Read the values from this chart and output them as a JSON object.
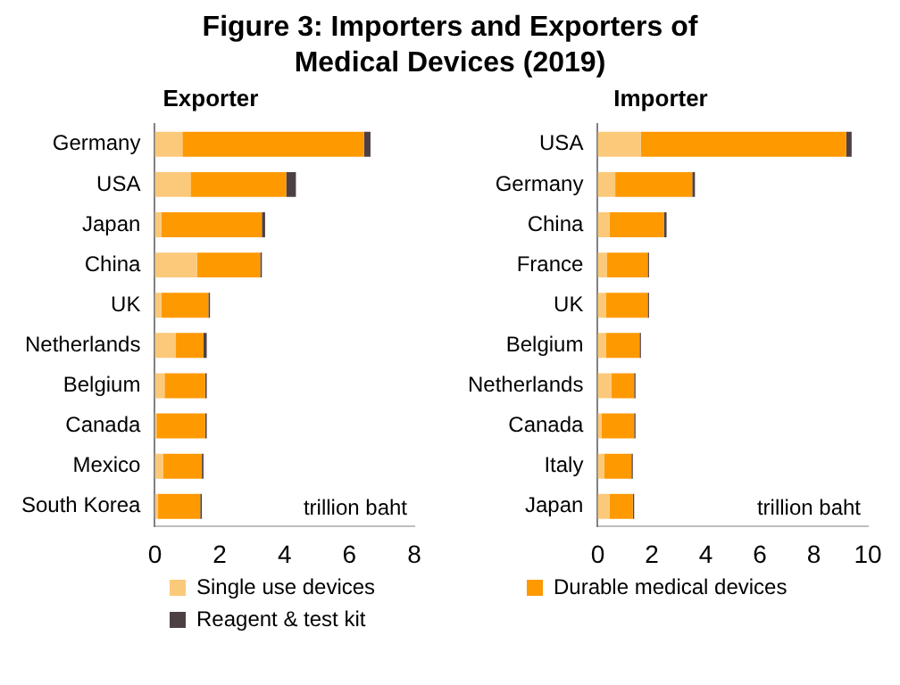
{
  "chart_data": [
    {
      "type": "bar",
      "orientation": "horizontal",
      "stacked": true,
      "title": "Figure 3: Importers and Exporters of Medical Devices (2019)",
      "subtitle": "Exporter",
      "categories": [
        "Germany",
        "USA",
        "Japan",
        "China",
        "UK",
        "Netherlands",
        "Belgium",
        "Canada",
        "Mexico",
        "South Korea"
      ],
      "series": [
        {
          "name": "Single use devices",
          "color": "#fbc97a",
          "values": [
            0.85,
            1.1,
            0.2,
            1.3,
            0.2,
            0.65,
            0.3,
            0.05,
            0.25,
            0.1
          ]
        },
        {
          "name": "Durable medical devices",
          "color": "#ff9900",
          "values": [
            5.6,
            2.95,
            3.1,
            1.95,
            1.45,
            0.85,
            1.25,
            1.5,
            1.2,
            1.3
          ]
        },
        {
          "name": "Reagent & test kit",
          "color": "#4d4043",
          "values": [
            0.2,
            0.3,
            0.1,
            0.05,
            0.05,
            0.1,
            0.05,
            0.05,
            0.05,
            0.05
          ]
        }
      ],
      "xlim": [
        0,
        8
      ],
      "xticks": [
        0,
        2,
        4,
        6,
        8
      ],
      "grid": false,
      "legend": "bottom",
      "annotations": [
        "trillion baht"
      ]
    },
    {
      "type": "bar",
      "orientation": "horizontal",
      "stacked": true,
      "title": "Importer",
      "categories": [
        "USA",
        "Germany",
        "China",
        "France",
        "UK",
        "Belgium",
        "Netherlands",
        "Canada",
        "Italy",
        "Japan"
      ],
      "series": [
        {
          "name": "Single use devices",
          "color": "#fbc97a",
          "values": [
            1.6,
            0.65,
            0.45,
            0.35,
            0.3,
            0.3,
            0.5,
            0.15,
            0.25,
            0.45
          ]
        },
        {
          "name": "Durable medical devices",
          "color": "#ff9900",
          "values": [
            7.6,
            2.85,
            2.0,
            1.5,
            1.55,
            1.25,
            0.85,
            1.2,
            1.0,
            0.85
          ]
        },
        {
          "name": "Reagent & test kit",
          "color": "#4d4043",
          "values": [
            0.2,
            0.1,
            0.1,
            0.05,
            0.05,
            0.05,
            0.05,
            0.05,
            0.05,
            0.05
          ]
        }
      ],
      "xlim": [
        0,
        10
      ],
      "xticks": [
        0,
        2,
        4,
        6,
        8,
        10
      ],
      "grid": false,
      "legend": "bottom",
      "annotations": [
        "trillion baht"
      ]
    }
  ]
}
